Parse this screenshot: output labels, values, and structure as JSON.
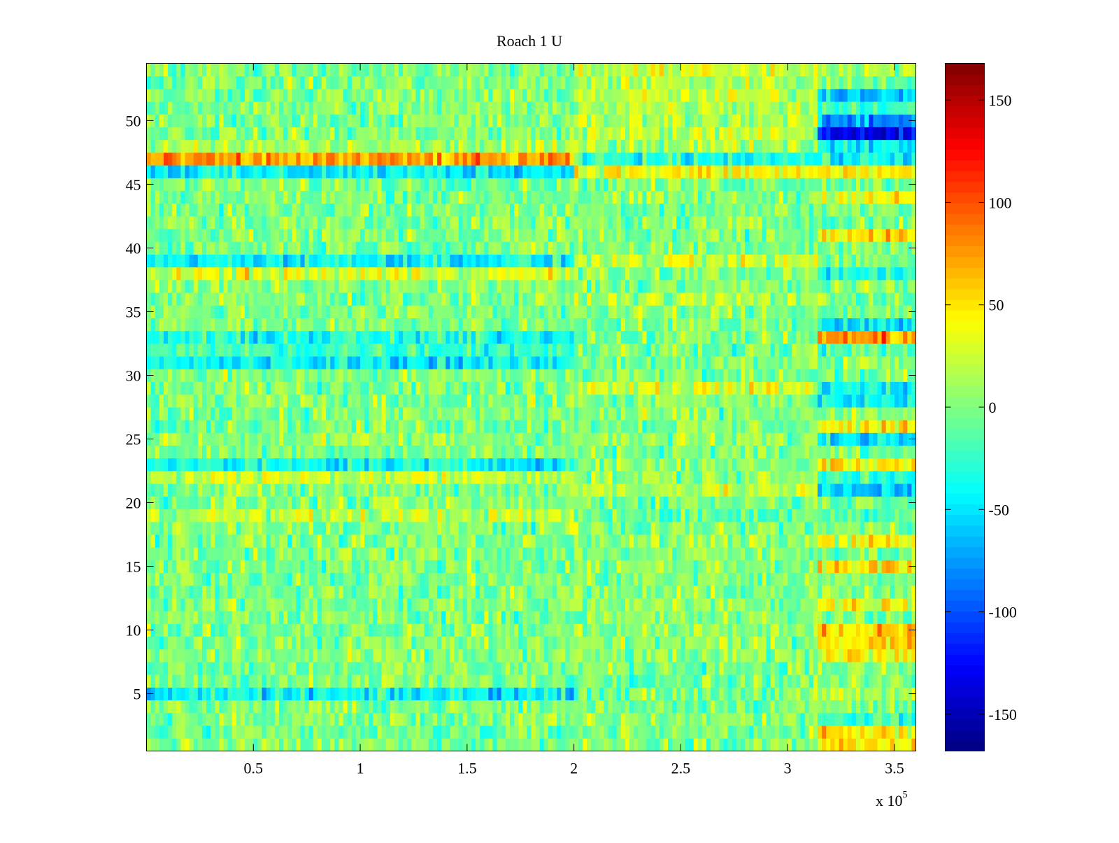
{
  "chart_data": {
    "type": "heatmap",
    "title": "Roach 1 U",
    "xlabel": "",
    "ylabel": "",
    "x_multiplier_label": {
      "base": "x 10",
      "exponent": "5"
    },
    "xlim": [
      0,
      3.6
    ],
    "ylim": [
      0.5,
      54.5
    ],
    "x_ticks": [
      0.5,
      1,
      1.5,
      2,
      2.5,
      3,
      3.5
    ],
    "x_tick_labels": [
      "0.5",
      "1",
      "1.5",
      "2",
      "2.5",
      "3",
      "3.5"
    ],
    "y_ticks": [
      5,
      10,
      15,
      20,
      25,
      30,
      35,
      40,
      45,
      50
    ],
    "y_tick_labels": [
      "5",
      "10",
      "15",
      "20",
      "25",
      "30",
      "35",
      "40",
      "45",
      "50"
    ],
    "rows": 54,
    "colormap": "jet",
    "color_range": [
      -168,
      168
    ],
    "colorbar_ticks": [
      150,
      100,
      50,
      0,
      -50,
      -100,
      -150
    ],
    "colorbar_tick_labels": [
      "150",
      "100",
      "50",
      "0",
      "-50",
      "-100",
      "-150"
    ],
    "segment_boundaries": [
      0,
      2.0,
      3.15,
      3.6
    ],
    "row_segment_means": {
      "1": [
        0,
        5,
        45
      ],
      "2": [
        -10,
        0,
        45
      ],
      "3": [
        0,
        5,
        -20
      ],
      "5": [
        -45,
        0,
        10
      ],
      "8": [
        0,
        0,
        45
      ],
      "9": [
        0,
        5,
        55
      ],
      "10": [
        0,
        5,
        55
      ],
      "12": [
        0,
        5,
        40
      ],
      "15": [
        0,
        5,
        45
      ],
      "17": [
        0,
        5,
        40
      ],
      "19": [
        20,
        -10,
        -10
      ],
      "21": [
        0,
        20,
        -60
      ],
      "22": [
        25,
        5,
        -20
      ],
      "23": [
        -40,
        5,
        45
      ],
      "25": [
        5,
        5,
        -45
      ],
      "26": [
        0,
        0,
        40
      ],
      "28": [
        0,
        0,
        -45
      ],
      "29": [
        0,
        30,
        -40
      ],
      "31": [
        -45,
        0,
        5
      ],
      "32": [
        -20,
        0,
        -15
      ],
      "33": [
        -35,
        0,
        75
      ],
      "34": [
        0,
        0,
        -45
      ],
      "36": [
        0,
        15,
        0
      ],
      "38": [
        30,
        0,
        -35
      ],
      "39": [
        -40,
        20,
        0
      ],
      "41": [
        0,
        0,
        55
      ],
      "44": [
        0,
        0,
        40
      ],
      "46": [
        -45,
        40,
        45
      ],
      "47": [
        70,
        -30,
        -40
      ],
      "48": [
        10,
        15,
        -40
      ],
      "49": [
        0,
        20,
        -130
      ],
      "50": [
        0,
        15,
        -80
      ],
      "51": [
        0,
        20,
        -20
      ],
      "52": [
        0,
        20,
        -55
      ],
      "53": [
        0,
        15,
        0
      ],
      "54": [
        0,
        25,
        15
      ]
    },
    "row_segment_means_default": [
      0,
      0,
      0
    ]
  }
}
